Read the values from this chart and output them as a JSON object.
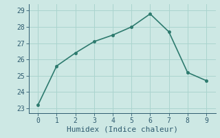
{
  "x": [
    0,
    1,
    2,
    3,
    4,
    5,
    6,
    7,
    8,
    9
  ],
  "y": [
    23.2,
    25.6,
    26.4,
    27.1,
    27.5,
    28.0,
    28.8,
    27.7,
    25.2,
    24.7
  ],
  "line_color": "#2d7a6e",
  "marker_color": "#2d7a6e",
  "bg_color": "#cde8e4",
  "grid_color": "#aad4ce",
  "xlabel": "Humidex (Indice chaleur)",
  "xlim": [
    -0.5,
    9.5
  ],
  "ylim": [
    22.7,
    29.4
  ],
  "yticks": [
    23,
    24,
    25,
    26,
    27,
    28,
    29
  ],
  "xticks": [
    0,
    1,
    2,
    3,
    4,
    5,
    6,
    7,
    8,
    9
  ],
  "tick_color": "#2d5a6e",
  "font_family": "monospace",
  "font_size": 7,
  "xlabel_size": 8,
  "linewidth": 1.2,
  "markersize": 3
}
